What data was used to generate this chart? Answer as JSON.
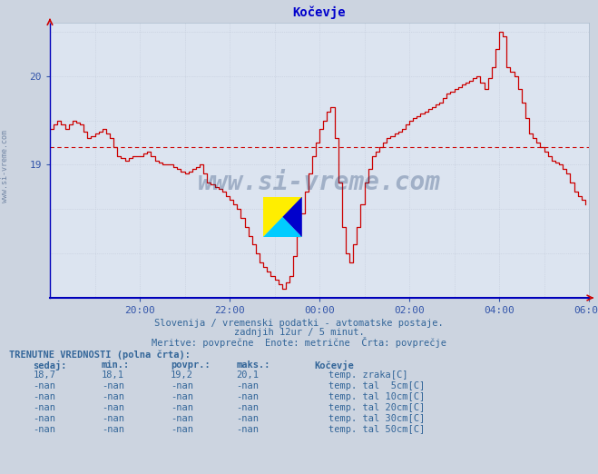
{
  "title": "Kočevje",
  "title_color": "#0000cc",
  "bg_color": "#ccd4e0",
  "plot_bg_color": "#dce4f0",
  "line_color": "#cc0000",
  "avg_line_color": "#cc0000",
  "avg_line_value": 19.2,
  "y_min": 17.5,
  "y_max": 20.6,
  "y_ticks": [
    19,
    20
  ],
  "x_labels": [
    "20:00",
    "22:00",
    "00:00",
    "02:00",
    "04:00",
    "06:00"
  ],
  "subtitle1": "Slovenija / vremenski podatki - avtomatske postaje.",
  "subtitle2": "zadnjih 12ur / 5 minut.",
  "subtitle3": "Meritve: povprečne  Enote: metrične  Črta: povprečje",
  "footer_bold": "TRENUTNE VREDNOSTI (polna črta):",
  "col_headers": [
    "sedaj:",
    "min.:",
    "povpr.:",
    "maks.:"
  ],
  "row_label": "Kočevje",
  "rows": [
    {
      "sedaj": "18,7",
      "min": "18,1",
      "povpr": "19,2",
      "maks": "20,1",
      "color": "#cc0000",
      "label": "temp. zraka[C]"
    },
    {
      "sedaj": "-nan",
      "min": "-nan",
      "povpr": "-nan",
      "maks": "-nan",
      "color": "#d4b0a0",
      "label": "temp. tal  5cm[C]"
    },
    {
      "sedaj": "-nan",
      "min": "-nan",
      "povpr": "-nan",
      "maks": "-nan",
      "color": "#c8a060",
      "label": "temp. tal 10cm[C]"
    },
    {
      "sedaj": "-nan",
      "min": "-nan",
      "povpr": "-nan",
      "maks": "-nan",
      "color": "#c89020",
      "label": "temp. tal 20cm[C]"
    },
    {
      "sedaj": "-nan",
      "min": "-nan",
      "povpr": "-nan",
      "maks": "-nan",
      "color": "#806040",
      "label": "temp. tal 30cm[C]"
    },
    {
      "sedaj": "-nan",
      "min": "-nan",
      "povpr": "-nan",
      "maks": "-nan",
      "color": "#604020",
      "label": "temp. tal 50cm[C]"
    }
  ],
  "watermark": "www.si-vreme.com",
  "sidebar_text": "www.si-vreme.com"
}
